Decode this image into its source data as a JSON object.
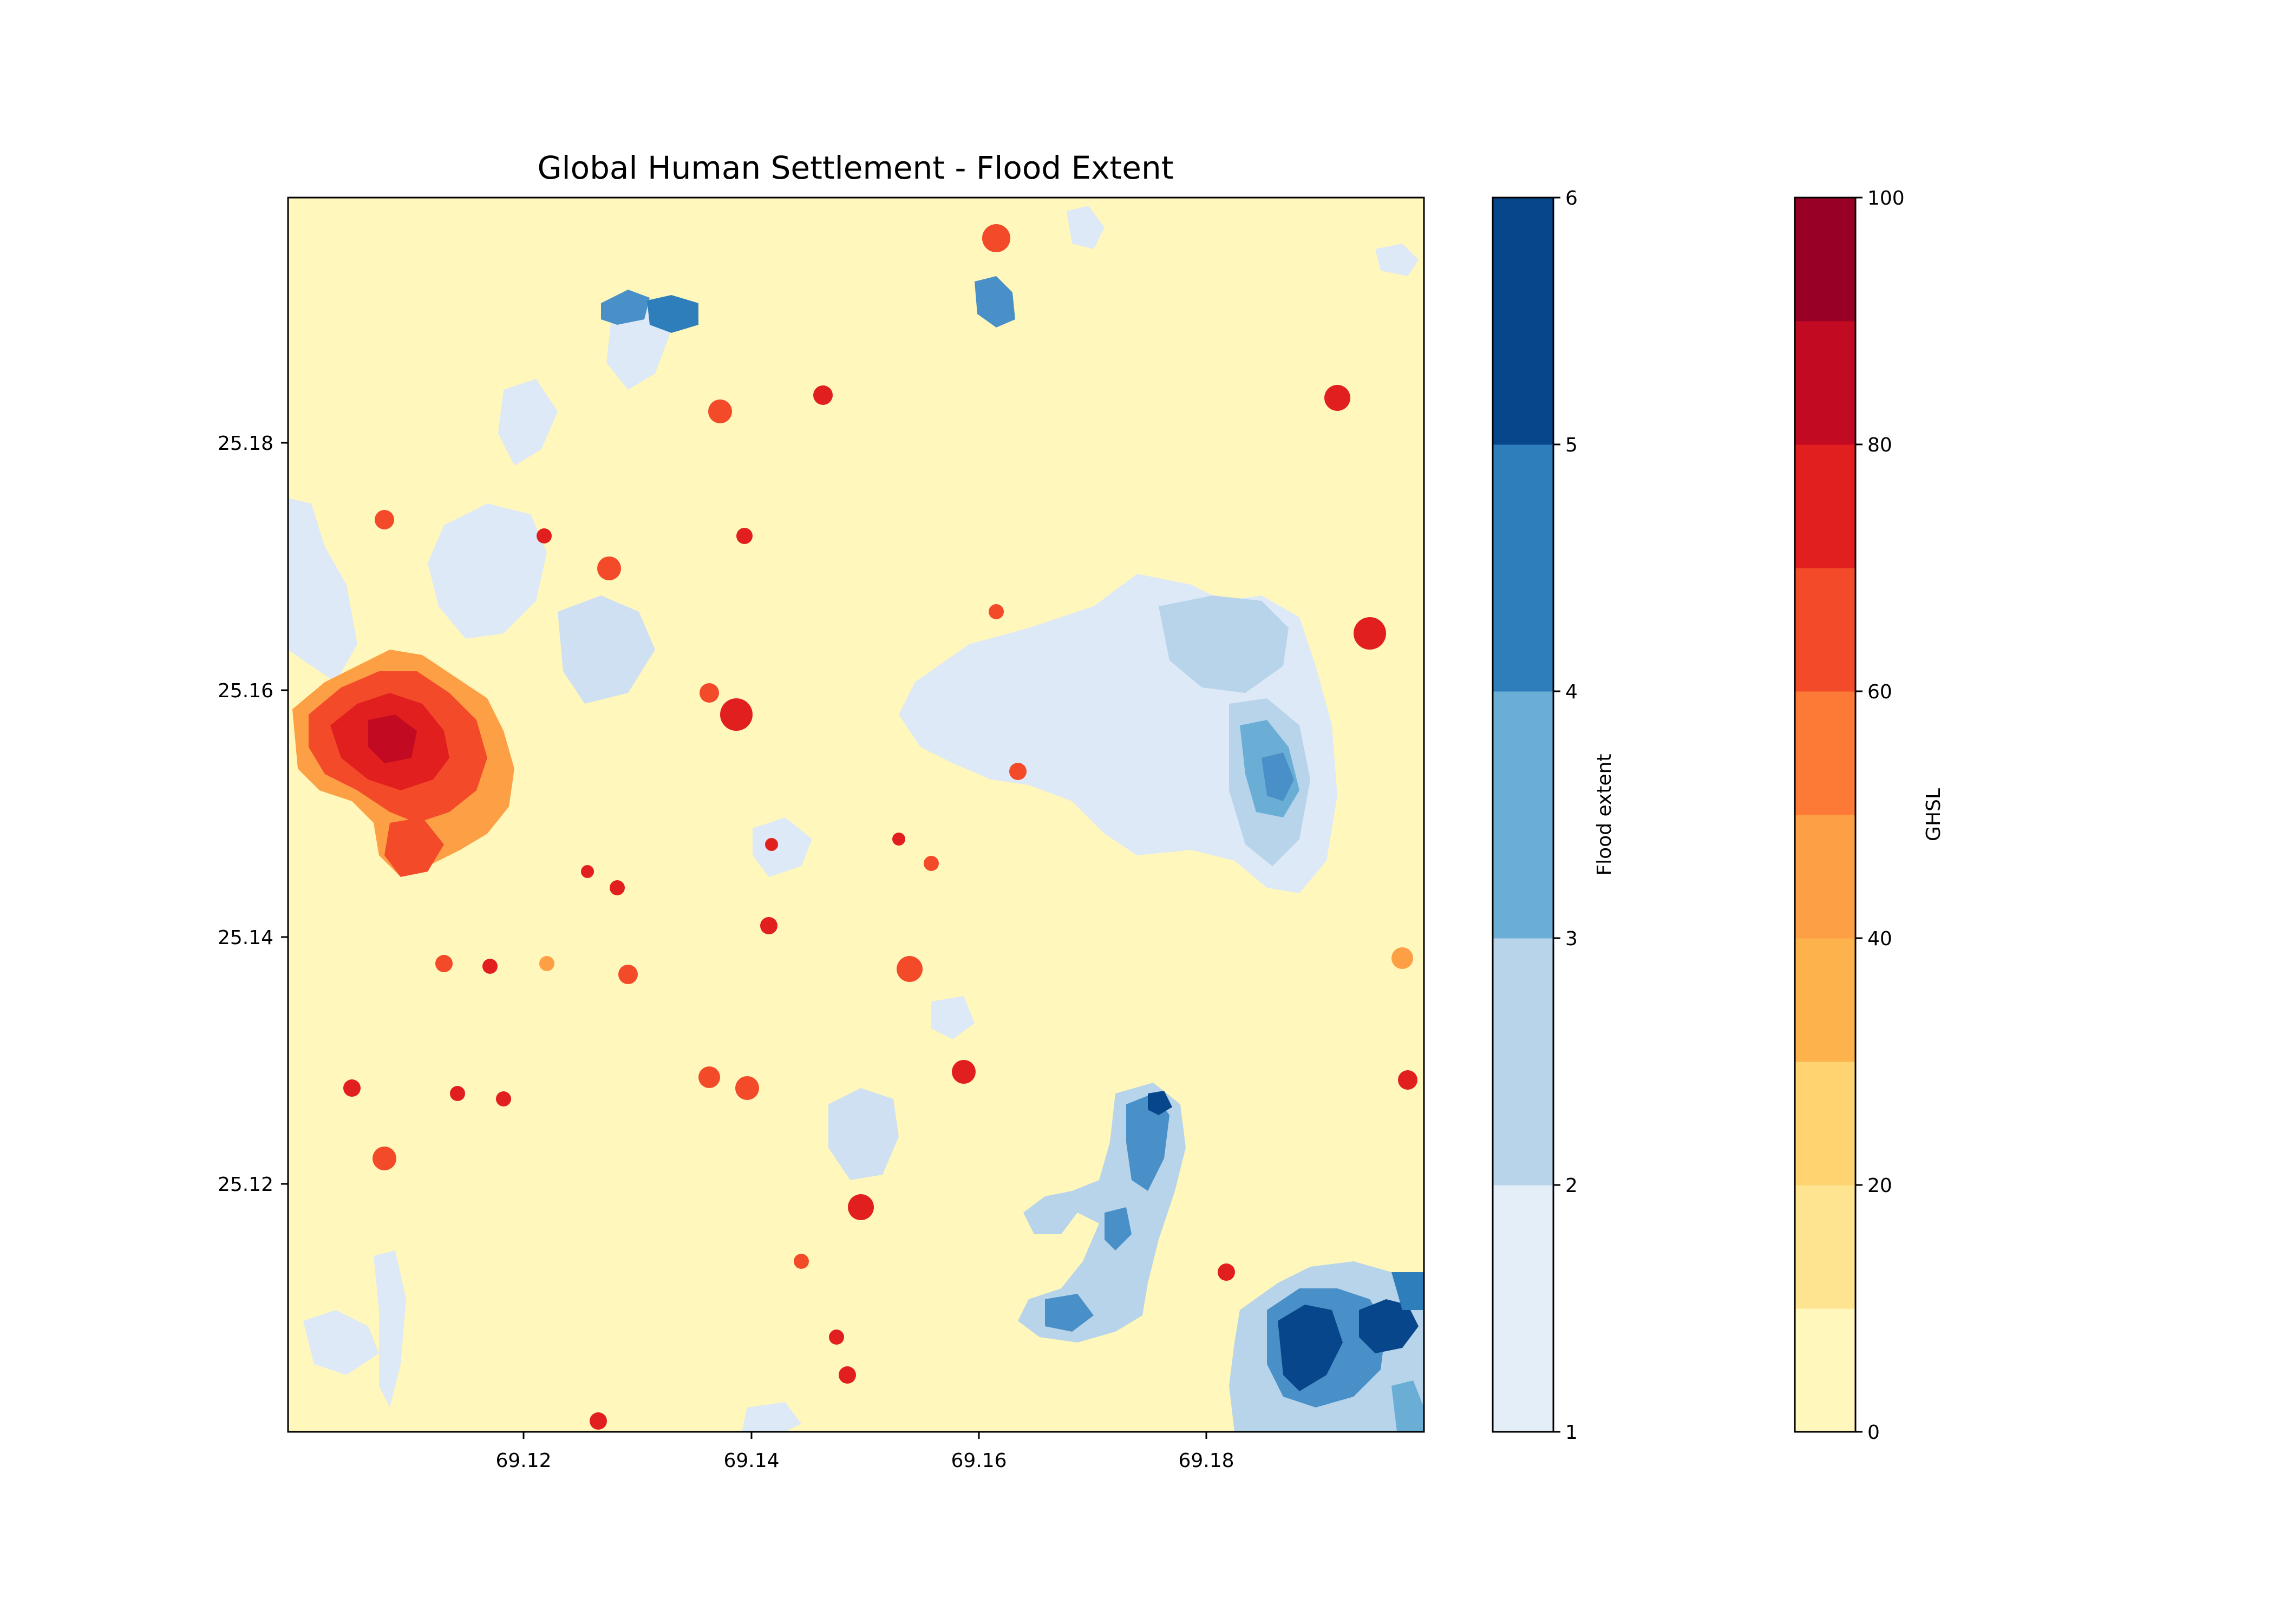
{
  "title": "Global Human Settlement - Flood Extent",
  "map": {
    "x_ticks": [
      "69.12",
      "69.14",
      "69.16",
      "69.18"
    ],
    "y_ticks": [
      "25.18",
      "25.16",
      "25.14",
      "25.12"
    ],
    "background_color": "#fff7bc"
  },
  "flood_colorbar": {
    "label": "Flood extent",
    "ticks": [
      "1",
      "2",
      "3",
      "4",
      "5",
      "6"
    ],
    "colors": [
      "#e3eef8",
      "#b7d4ea",
      "#6aaed6",
      "#2e7ebc",
      "#08468b"
    ]
  },
  "ghsl_colorbar": {
    "label": "GHSL",
    "ticks": [
      "0",
      "20",
      "40",
      "60",
      "80",
      "100"
    ],
    "colors": [
      "#fff7bc",
      "#fee391",
      "#fed370",
      "#feb24c",
      "#fd9f44",
      "#fd7a36",
      "#f34a2a",
      "#e11f1e",
      "#c20a22",
      "#990026"
    ]
  },
  "legend_note": ""
}
